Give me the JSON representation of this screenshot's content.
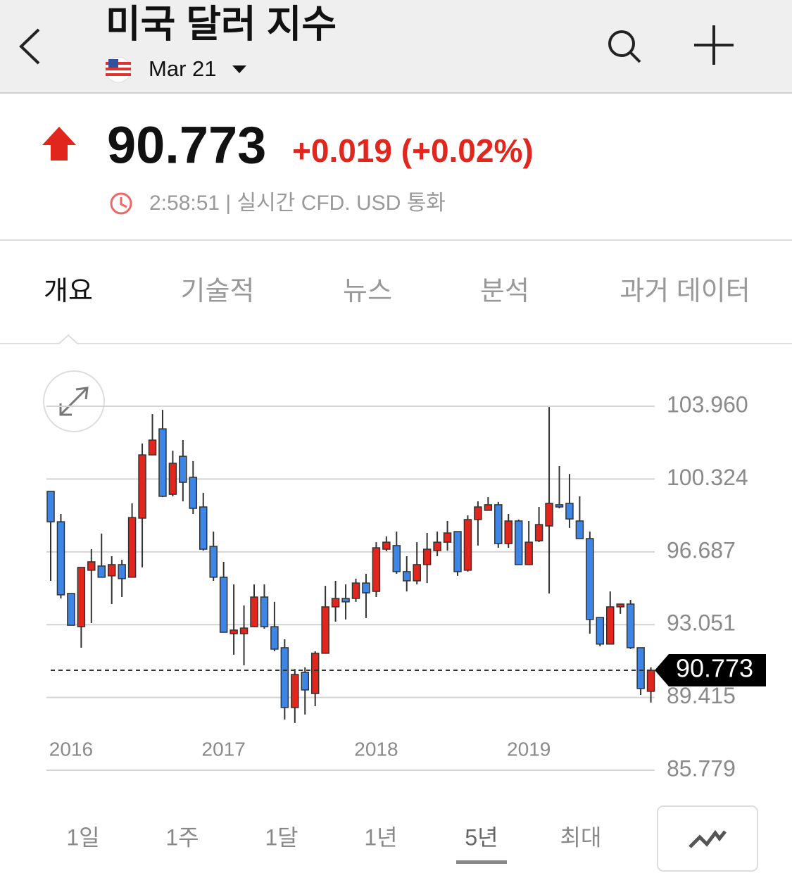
{
  "header": {
    "title": "미국 달러 지수",
    "date": "Mar 21"
  },
  "quote": {
    "price": "90.773",
    "change": "+0.019 (+0.02%)",
    "status": "2:58:51 | 실시간 CFD. USD 통화"
  },
  "tabs": [
    "개요",
    "기술적",
    "뉴스",
    "분석",
    "과거 데이터"
  ],
  "chart_data": {
    "type": "candlestick",
    "categories": [
      null,
      null,
      "2016",
      null,
      null,
      null,
      null,
      null,
      null,
      null,
      null,
      null,
      null,
      null,
      null,
      null,
      null,
      "2017",
      null,
      null,
      null,
      null,
      null,
      null,
      null,
      null,
      null,
      null,
      null,
      null,
      null,
      null,
      "2018",
      null,
      null,
      null,
      null,
      null,
      null,
      null,
      null,
      null,
      null,
      null,
      null,
      null,
      null,
      "2019",
      null,
      null,
      null,
      null,
      null,
      null,
      null,
      null,
      null,
      null,
      null,
      null
    ],
    "open": [
      99.71,
      98.19,
      94.61,
      92.95,
      95.77,
      95.98,
      95.49,
      96.05,
      95.42,
      98.37,
      101.53,
      102.83,
      99.56,
      101.46,
      100.41,
      98.93,
      96.96,
      95.42,
      92.6,
      92.6,
      92.95,
      94.43,
      92.95,
      91.9,
      88.91,
      90.67,
      89.61,
      91.62,
      93.94,
      94.36,
      94.36,
      95.13,
      94.71,
      96.82,
      97.0,
      95.7,
      95.24,
      96.05,
      96.75,
      97.17,
      97.7,
      95.77,
      98.3,
      98.76,
      99.04,
      97.1,
      98.23,
      96.05,
      97.24,
      97.98,
      99.04,
      99.11,
      98.23,
      97.35,
      93.41,
      92.08,
      93.94,
      94.08,
      91.9,
      89.72
    ],
    "high": [
      99.71,
      98.58,
      94.61,
      95.91,
      96.82,
      97.6,
      96.47,
      96.29,
      99.11,
      102.1,
      103.57,
      103.78,
      101.74,
      102.27,
      101.22,
      99.64,
      97.7,
      96.19,
      95.06,
      94.01,
      95.06,
      95.06,
      94.19,
      92.32,
      90.84,
      90.92,
      91.72,
      94.99,
      95.24,
      95.06,
      95.35,
      95.59,
      97.17,
      97.46,
      97.7,
      96.47,
      97.17,
      97.63,
      97.7,
      98.23,
      97.7,
      98.51,
      99.21,
      99.42,
      99.18,
      98.58,
      98.3,
      98.23,
      98.93,
      103.92,
      100.97,
      100.58,
      99.46,
      97.7,
      93.41,
      94.71,
      94.08,
      94.29,
      91.9,
      90.92
    ],
    "low": [
      95.24,
      94.36,
      93.02,
      91.9,
      93.13,
      95.42,
      94.08,
      94.43,
      95.42,
      95.91,
      101.53,
      99.42,
      99.46,
      99.21,
      98.58,
      96.75,
      95.24,
      92.67,
      91.55,
      91.02,
      92.95,
      92.85,
      91.72,
      88.31,
      88.14,
      88.56,
      88.98,
      91.62,
      93.2,
      93.31,
      94.19,
      93.38,
      94.43,
      96.72,
      95.59,
      94.71,
      95.06,
      95.13,
      96.47,
      96.75,
      95.49,
      95.7,
      97.0,
      98.76,
      96.89,
      96.89,
      96.05,
      96.05,
      97.17,
      94.61,
      98.86,
      97.88,
      97.35,
      92.6,
      91.97,
      92.08,
      93.59,
      91.83,
      89.54,
      89.16
    ],
    "close": [
      98.19,
      94.54,
      93.02,
      95.91,
      96.19,
      95.42,
      96.05,
      95.35,
      98.4,
      101.53,
      102.27,
      99.46,
      101.11,
      100.16,
      98.86,
      96.82,
      95.42,
      92.67,
      92.78,
      92.88,
      94.43,
      92.95,
      91.83,
      88.91,
      90.56,
      89.79,
      91.62,
      93.94,
      94.36,
      94.19,
      95.13,
      94.64,
      96.89,
      97.17,
      95.7,
      95.24,
      96.05,
      96.82,
      97.17,
      97.63,
      95.7,
      98.3,
      98.93,
      99.04,
      97.1,
      98.23,
      96.05,
      97.17,
      98.05,
      99.11,
      98.93,
      98.33,
      97.35,
      93.31,
      92.08,
      93.94,
      94.08,
      91.9,
      89.86,
      90.773
    ],
    "up_color": "#e0261d",
    "down_color": "#3d86e6",
    "ylim": [
      85.779,
      103.96
    ],
    "yticks": [
      85.779,
      89.415,
      93.051,
      96.687,
      100.324,
      {
        "value": 103.96,
        "label": "103.960"
      }
    ],
    "last_price": 90.773,
    "grid": true
  },
  "ranges": [
    "1일",
    "1주",
    "1달",
    "1년",
    "5년",
    "최대"
  ]
}
